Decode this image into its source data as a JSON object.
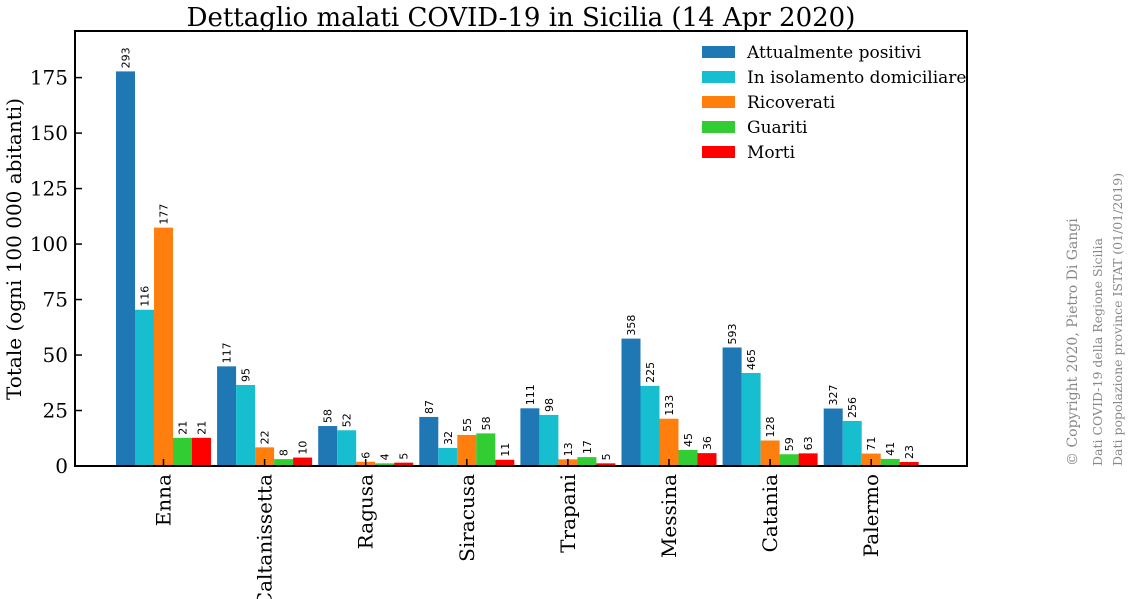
{
  "chart_data": {
    "type": "bar",
    "title": "Dettaglio malati COVID-19 in Sicilia (14 Apr 2020)",
    "ylabel": "Totale (ogni 100 000 abitanti)",
    "xlabel": "",
    "ylim": [
      0,
      196
    ],
    "yticks": [
      0,
      25,
      50,
      75,
      100,
      125,
      150,
      175
    ],
    "grid": false,
    "legend_position": "top-right",
    "categories": [
      "Enna",
      "Caltanissetta",
      "Ragusa",
      "Siracusa",
      "Trapani",
      "Messina",
      "Catania",
      "Palermo"
    ],
    "series": [
      {
        "name": "Attualmente positivi",
        "color": "#1f77b4",
        "values": [
          177.8,
          44.9,
          18.0,
          22.1,
          26.0,
          57.4,
          53.4,
          25.9
        ],
        "labels": [
          "293",
          "117",
          "58",
          "87",
          "111",
          "358",
          "593",
          "327"
        ]
      },
      {
        "name": "In isolamento domiciliare",
        "color": "#17becf",
        "values": [
          70.4,
          36.5,
          16.1,
          8.1,
          23.0,
          36.1,
          41.9,
          20.3
        ],
        "labels": [
          "116",
          "95",
          "52",
          "32",
          "98",
          "225",
          "465",
          "256"
        ]
      },
      {
        "name": "Ricoverati",
        "color": "#ff7f0e",
        "values": [
          107.4,
          8.4,
          1.9,
          14.0,
          3.0,
          21.3,
          11.5,
          5.6
        ],
        "labels": [
          "177",
          "22",
          "6",
          "55",
          "13",
          "133",
          "128",
          "71"
        ]
      },
      {
        "name": "Guariti",
        "color": "#32cd32",
        "values": [
          12.7,
          3.1,
          1.2,
          14.7,
          4.0,
          7.2,
          5.3,
          3.2
        ],
        "labels": [
          "21",
          "8",
          "4",
          "58",
          "17",
          "45",
          "59",
          "41"
        ]
      },
      {
        "name": "Morti",
        "color": "#ff0000",
        "values": [
          12.7,
          3.8,
          1.5,
          2.8,
          1.2,
          5.8,
          5.7,
          1.8
        ],
        "labels": [
          "21",
          "10",
          "5",
          "11",
          "5",
          "36",
          "63",
          "23"
        ]
      }
    ],
    "credits": [
      "© Copyright 2020, Pietro Di Gangi",
      "Dati COVID-19 della Regione Sicilia",
      "Dati popolazione province ISTAT (01/01/2019)"
    ]
  }
}
